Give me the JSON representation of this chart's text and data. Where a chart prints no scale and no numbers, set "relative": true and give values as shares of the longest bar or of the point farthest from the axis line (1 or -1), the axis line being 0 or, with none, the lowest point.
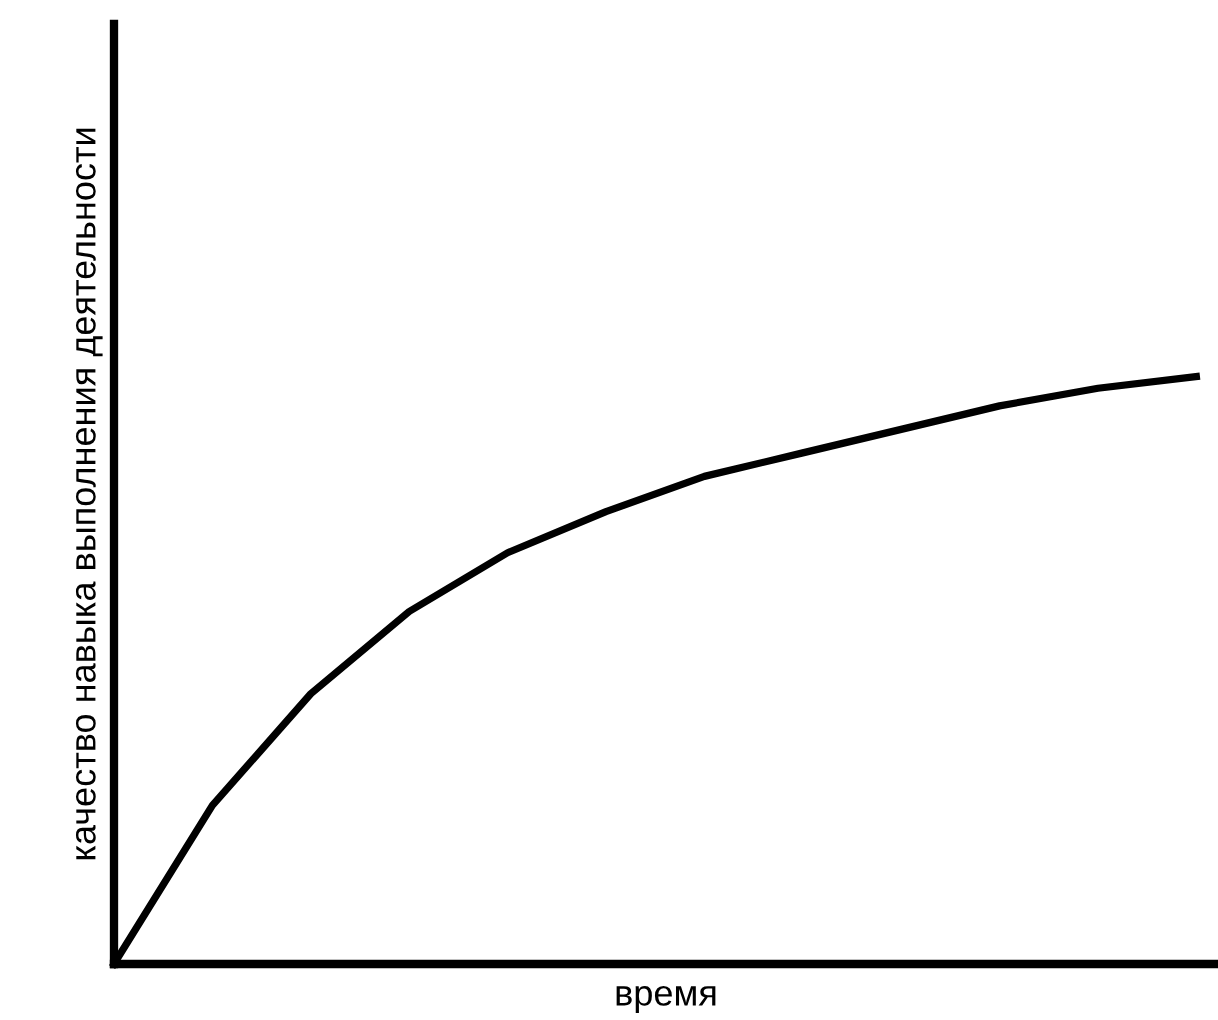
{
  "chart_data": {
    "type": "line",
    "relative": true,
    "xlabel": "время",
    "ylabel": "качество навыка выполнения деятельности",
    "categories": [
      null,
      null,
      null,
      null,
      null,
      null,
      null,
      null,
      null,
      null,
      null,
      null
    ],
    "series": [
      {
        "color": "#000000",
        "values": [
          0,
          0.27,
          0.46,
          0.6,
          0.7,
          0.77,
          0.83,
          0.87,
          0.91,
          0.95,
          0.98,
          1.0
        ]
      }
    ],
    "grid": false,
    "legend": false,
    "marker": "none",
    "line_style": "solid"
  }
}
